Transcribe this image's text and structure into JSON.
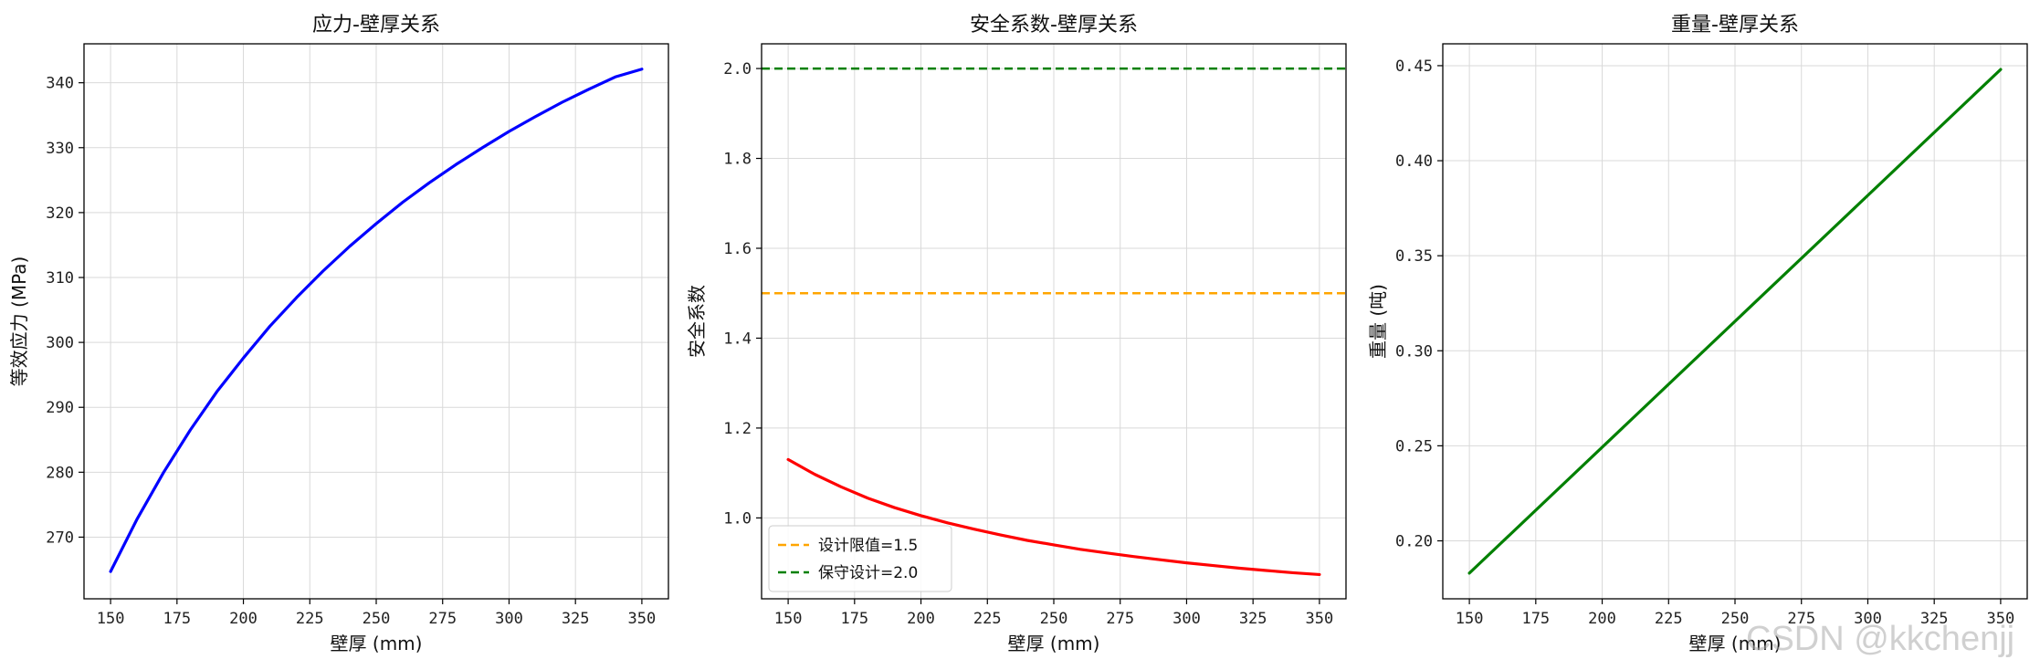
{
  "watermark": "CSDN @kkchenjj",
  "chart_data": [
    {
      "type": "line",
      "title": "应力-壁厚关系",
      "xlabel": "壁厚 (mm)",
      "ylabel": "等效应力 (MPa)",
      "xlim": [
        140,
        360
      ],
      "ylim": [
        260.5,
        346
      ],
      "xticks": [
        150,
        175,
        200,
        225,
        250,
        275,
        300,
        325,
        350
      ],
      "yticks": [
        270,
        280,
        290,
        300,
        310,
        320,
        330,
        340
      ],
      "grid": true,
      "legend": null,
      "series": [
        {
          "color": "#0000ff",
          "x": [
            150,
            160,
            170,
            180,
            190,
            200,
            210,
            220,
            230,
            240,
            250,
            260,
            270,
            280,
            290,
            300,
            310,
            320,
            330,
            340,
            350
          ],
          "values": [
            264.7,
            272.8,
            280.0,
            286.5,
            292.4,
            297.6,
            302.5,
            306.9,
            311.0,
            314.8,
            318.3,
            321.6,
            324.6,
            327.4,
            330.0,
            332.5,
            334.8,
            337.0,
            339.0,
            340.9,
            342.1
          ]
        }
      ]
    },
    {
      "type": "line",
      "title": "安全系数-壁厚关系",
      "xlabel": "壁厚 (mm)",
      "ylabel": "安全系数",
      "xlim": [
        140,
        360
      ],
      "ylim": [
        0.82,
        2.055
      ],
      "xticks": [
        150,
        175,
        200,
        225,
        250,
        275,
        300,
        325,
        350
      ],
      "yticks": [
        1.0,
        1.2,
        1.4,
        1.6,
        1.8,
        2.0
      ],
      "ytick_labels": [
        "1.0",
        "1.2",
        "1.4",
        "1.6",
        "1.8",
        "2.0"
      ],
      "grid": true,
      "legend": "lower-left",
      "series": [
        {
          "color": "#ff0000",
          "x": [
            150,
            160,
            170,
            180,
            190,
            200,
            210,
            220,
            230,
            240,
            250,
            260,
            270,
            280,
            290,
            300,
            310,
            320,
            330,
            340,
            350
          ],
          "values": [
            1.13,
            1.097,
            1.069,
            1.044,
            1.023,
            1.005,
            0.989,
            0.975,
            0.962,
            0.95,
            0.94,
            0.93,
            0.922,
            0.914,
            0.907,
            0.9,
            0.894,
            0.888,
            0.883,
            0.878,
            0.874
          ]
        }
      ],
      "reference_lines": [
        {
          "name": "设计限值=1.5",
          "value": 1.5,
          "color": "#ffa500",
          "style": "dashed"
        },
        {
          "name": "保守设计=2.0",
          "value": 2.0,
          "color": "#008000",
          "style": "dashed"
        }
      ]
    },
    {
      "type": "line",
      "title": "重量-壁厚关系",
      "xlabel": "壁厚 (mm)",
      "ylabel": "重量 (吨)",
      "xlim": [
        140,
        360
      ],
      "ylim": [
        0.1695,
        0.4615
      ],
      "xticks": [
        150,
        175,
        200,
        225,
        250,
        275,
        300,
        325,
        350
      ],
      "yticks": [
        0.2,
        0.25,
        0.3,
        0.35,
        0.4,
        0.45
      ],
      "ytick_labels": [
        "0.20",
        "0.25",
        "0.30",
        "0.35",
        "0.40",
        "0.45"
      ],
      "grid": true,
      "legend": null,
      "series": [
        {
          "color": "#008000",
          "x": [
            150,
            350
          ],
          "values": [
            0.183,
            0.448
          ]
        }
      ]
    }
  ]
}
